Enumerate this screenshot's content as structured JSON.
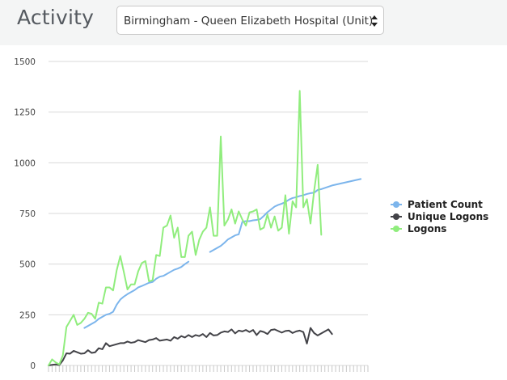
{
  "header": {
    "title": "Activity",
    "unit_select": {
      "selected": "Birmingham - Queen Elizabeth Hospital  (Unit)"
    }
  },
  "chart_data": {
    "type": "line",
    "title": "",
    "xlabel": "",
    "ylabel": "",
    "ylim": [
      0,
      1500
    ],
    "yticks": [
      0,
      250,
      500,
      750,
      1000,
      1250,
      1500
    ],
    "grid": true,
    "legend_position": "right",
    "x_count": 90,
    "series": [
      {
        "name": "Patient Count",
        "color": "#7cb5ec",
        "values": [
          null,
          null,
          null,
          null,
          null,
          null,
          null,
          null,
          null,
          null,
          185,
          195,
          205,
          215,
          230,
          240,
          250,
          255,
          265,
          300,
          325,
          340,
          352,
          362,
          372,
          385,
          392,
          400,
          408,
          412,
          428,
          438,
          442,
          452,
          462,
          472,
          478,
          486,
          500,
          512,
          null,
          null,
          null,
          null,
          null,
          560,
          570,
          580,
          590,
          605,
          622,
          632,
          642,
          647,
          708,
          712,
          712,
          716,
          718,
          722,
          738,
          756,
          770,
          784,
          792,
          798,
          806,
          818,
          826,
          830,
          836,
          840,
          846,
          850,
          852,
          866,
          870,
          876,
          882,
          888,
          892,
          896,
          900,
          904,
          908,
          912,
          916,
          920,
          null,
          null
        ]
      },
      {
        "name": "Unique Logons",
        "color": "#434348",
        "values": [
          0,
          3,
          5,
          2,
          25,
          60,
          58,
          72,
          65,
          58,
          60,
          75,
          62,
          65,
          85,
          80,
          110,
          95,
          100,
          105,
          110,
          110,
          118,
          112,
          115,
          125,
          120,
          115,
          125,
          128,
          135,
          122,
          125,
          128,
          122,
          140,
          132,
          145,
          138,
          150,
          140,
          150,
          145,
          155,
          140,
          160,
          148,
          150,
          162,
          168,
          165,
          178,
          158,
          172,
          168,
          175,
          165,
          175,
          150,
          170,
          165,
          155,
          175,
          178,
          170,
          162,
          170,
          172,
          160,
          168,
          172,
          165,
          108,
          185,
          160,
          148,
          158,
          168,
          178,
          155,
          null,
          null,
          null,
          null,
          null,
          null,
          null,
          null,
          null,
          null
        ]
      },
      {
        "name": "Logons",
        "color": "#90ed7d",
        "values": [
          0,
          30,
          15,
          5,
          50,
          190,
          220,
          250,
          200,
          210,
          230,
          260,
          255,
          230,
          310,
          305,
          385,
          385,
          370,
          470,
          540,
          460,
          375,
          400,
          400,
          465,
          505,
          515,
          415,
          420,
          545,
          540,
          680,
          690,
          740,
          630,
          680,
          535,
          535,
          640,
          660,
          545,
          620,
          660,
          680,
          780,
          640,
          640,
          1130,
          690,
          720,
          770,
          700,
          760,
          720,
          690,
          755,
          760,
          770,
          670,
          680,
          745,
          680,
          735,
          665,
          680,
          840,
          650,
          810,
          780,
          1355,
          780,
          820,
          700,
          860,
          990,
          645,
          null,
          null,
          null,
          null,
          null,
          null,
          null,
          null,
          null,
          null,
          null,
          null,
          null
        ]
      }
    ]
  }
}
